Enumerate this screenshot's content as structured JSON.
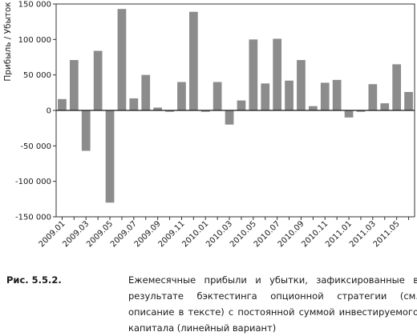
{
  "chart_data": {
    "type": "bar",
    "ylabel": "Прибыль / Убыток",
    "xlabel": "",
    "title": "",
    "ylim": [
      -150000,
      150000
    ],
    "yticks": [
      150000,
      100000,
      50000,
      0,
      -50000,
      -100000,
      -150000
    ],
    "ytick_labels": [
      "150 000",
      "100 000",
      "50 000",
      "0",
      "-50 000",
      "-100 000",
      "-150 000"
    ],
    "categories": [
      "2009.01",
      "2009.02",
      "2009.03",
      "2009.04",
      "2009.05",
      "2009.06",
      "2009.07",
      "2009.08",
      "2009.09",
      "2009.10",
      "2009.11",
      "2009.12",
      "2010.01",
      "2010.02",
      "2010.03",
      "2010.04",
      "2010.05",
      "2010.06",
      "2010.07",
      "2010.08",
      "2010.09",
      "2010.10",
      "2010.11",
      "2010.12",
      "2011.01",
      "2011.02",
      "2011.03",
      "2011.04",
      "2011.05",
      "2011.06"
    ],
    "xtick_labels": [
      "2009.01",
      "2009.03",
      "2009.05",
      "2009.07",
      "2009.09",
      "2009.11",
      "2010.01",
      "2010.03",
      "2010.05",
      "2010.07",
      "2010.09",
      "2010.11",
      "2011.01",
      "2011.03",
      "2011.05"
    ],
    "values": [
      16000,
      71000,
      -57000,
      84000,
      -130000,
      143000,
      17000,
      50000,
      4000,
      -2000,
      40000,
      139000,
      -2000,
      40000,
      -20000,
      14000,
      100000,
      38000,
      101000,
      42000,
      71000,
      6000,
      39000,
      43000,
      -10000,
      -2000,
      37000,
      10000,
      65000,
      26000
    ],
    "bar_color": "#8c8c8c",
    "grid": false
  },
  "caption": {
    "label": "Рис. 5.5.2.",
    "text": "Ежемесячные прибыли и убытки, зафиксированные в результате бэктестинга опционной стратегии (см. описание в тексте) с постоянной суммой инвестируемого капитала (линейный вариант)"
  }
}
